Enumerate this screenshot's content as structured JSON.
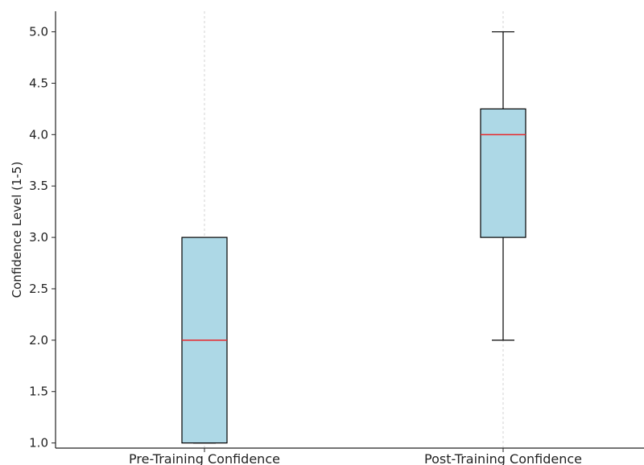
{
  "chart_data": {
    "type": "box",
    "title": "",
    "xlabel": "",
    "ylabel": "Confidence Level (1-5)",
    "ylim": [
      0.95,
      5.2
    ],
    "yticks": [
      1.0,
      1.5,
      2.0,
      2.5,
      3.0,
      3.5,
      4.0,
      4.5,
      5.0
    ],
    "grid": "vertical dashed at categories",
    "categories": [
      "Pre-Training Confidence",
      "Post-Training Confidence"
    ],
    "boxes": [
      {
        "category": "Pre-Training Confidence",
        "min": 1.0,
        "q1": 1.0,
        "median": 2.0,
        "q3": 3.0,
        "max": 3.0
      },
      {
        "category": "Post-Training Confidence",
        "min": 2.0,
        "q1": 3.0,
        "median": 4.0,
        "q3": 4.25,
        "max": 5.0
      }
    ],
    "colors": {
      "box_fill": "#add8e6",
      "median": "#e8262a",
      "edge": "#000000",
      "grid": "#c8c8c8"
    }
  }
}
